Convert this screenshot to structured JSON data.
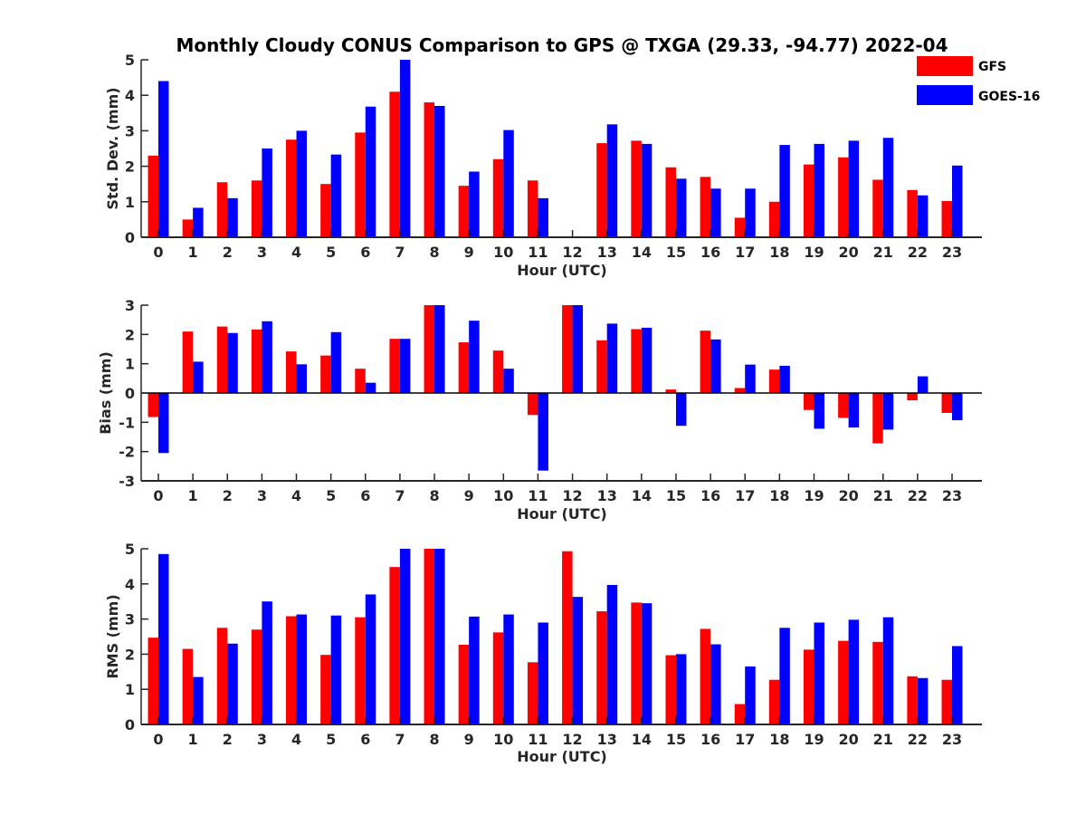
{
  "figure_title": "Monthly Cloudy CONUS Comparison to GPS @ TXGA (29.33, -94.77) 2022-04",
  "legend": [
    {
      "label": "GFS",
      "color": "#ff0000"
    },
    {
      "label": "GOES-16",
      "color": "#0000ff"
    }
  ],
  "chart_data": [
    {
      "type": "bar",
      "categories": [
        "0",
        "1",
        "2",
        "3",
        "4",
        "5",
        "6",
        "7",
        "8",
        "9",
        "10",
        "11",
        "12",
        "13",
        "14",
        "15",
        "16",
        "17",
        "18",
        "19",
        "20",
        "21",
        "22",
        "23"
      ],
      "series": [
        {
          "name": "GFS",
          "color": "#ff0000",
          "values": [
            2.3,
            0.5,
            1.55,
            1.6,
            2.75,
            1.5,
            2.95,
            4.1,
            3.8,
            1.45,
            2.2,
            1.6,
            null,
            2.65,
            2.72,
            1.97,
            1.7,
            0.55,
            1.0,
            2.05,
            2.25,
            1.62,
            1.33,
            1.02
          ]
        },
        {
          "name": "GOES-16",
          "color": "#0000ff",
          "values": [
            4.4,
            0.83,
            1.1,
            2.5,
            3.0,
            2.33,
            3.68,
            5.0,
            3.7,
            1.85,
            3.02,
            1.1,
            null,
            3.18,
            2.63,
            1.65,
            1.37,
            1.37,
            2.6,
            2.63,
            2.72,
            2.8,
            1.18,
            2.02
          ]
        }
      ],
      "xlabel": "Hour (UTC)",
      "ylabel": "Std. Dev. (mm)",
      "ylim": [
        0,
        5
      ],
      "yticks": [
        0,
        1,
        2,
        3,
        4,
        5
      ],
      "grid": false,
      "legend_position": "top-right"
    },
    {
      "type": "bar",
      "categories": [
        "0",
        "1",
        "2",
        "3",
        "4",
        "5",
        "6",
        "7",
        "8",
        "9",
        "10",
        "11",
        "12",
        "13",
        "14",
        "15",
        "16",
        "17",
        "18",
        "19",
        "20",
        "21",
        "22",
        "23"
      ],
      "series": [
        {
          "name": "GFS",
          "color": "#ff0000",
          "values": [
            -0.82,
            2.1,
            2.27,
            2.17,
            1.42,
            1.28,
            0.83,
            1.85,
            3.0,
            1.73,
            1.45,
            -0.75,
            3.0,
            1.8,
            2.18,
            0.12,
            2.13,
            0.17,
            0.8,
            -0.58,
            -0.85,
            -1.72,
            -0.25,
            -0.68
          ]
        },
        {
          "name": "GOES-16",
          "color": "#0000ff",
          "values": [
            -2.05,
            1.07,
            2.05,
            2.45,
            0.98,
            2.08,
            0.35,
            1.85,
            3.0,
            2.47,
            0.83,
            -2.65,
            3.0,
            2.37,
            2.23,
            -1.12,
            1.83,
            0.97,
            0.93,
            -1.22,
            -1.18,
            -1.25,
            0.57,
            -0.93
          ]
        }
      ],
      "xlabel": "Hour (UTC)",
      "ylabel": "Bias (mm)",
      "ylim": [
        -3,
        3
      ],
      "yticks": [
        -3,
        -2,
        -1,
        0,
        1,
        2,
        3
      ],
      "grid": false
    },
    {
      "type": "bar",
      "categories": [
        "0",
        "1",
        "2",
        "3",
        "4",
        "5",
        "6",
        "7",
        "8",
        "9",
        "10",
        "11",
        "12",
        "13",
        "14",
        "15",
        "16",
        "17",
        "18",
        "19",
        "20",
        "21",
        "22",
        "23"
      ],
      "series": [
        {
          "name": "GFS",
          "color": "#ff0000",
          "values": [
            2.47,
            2.15,
            2.75,
            2.7,
            3.08,
            1.98,
            3.05,
            4.48,
            5.0,
            2.27,
            2.62,
            1.77,
            4.93,
            3.22,
            3.47,
            1.97,
            2.72,
            0.58,
            1.27,
            2.13,
            2.38,
            2.35,
            1.37,
            1.27
          ]
        },
        {
          "name": "GOES-16",
          "color": "#0000ff",
          "values": [
            4.85,
            1.35,
            2.3,
            3.5,
            3.13,
            3.1,
            3.7,
            5.0,
            5.0,
            3.07,
            3.13,
            2.9,
            3.63,
            3.97,
            3.45,
            2.0,
            2.28,
            1.65,
            2.75,
            2.9,
            2.98,
            3.05,
            1.32,
            2.23
          ]
        }
      ],
      "xlabel": "Hour (UTC)",
      "ylabel": "RMS (mm)",
      "ylim": [
        0,
        5
      ],
      "yticks": [
        0,
        1,
        2,
        3,
        4,
        5
      ],
      "grid": false
    }
  ]
}
